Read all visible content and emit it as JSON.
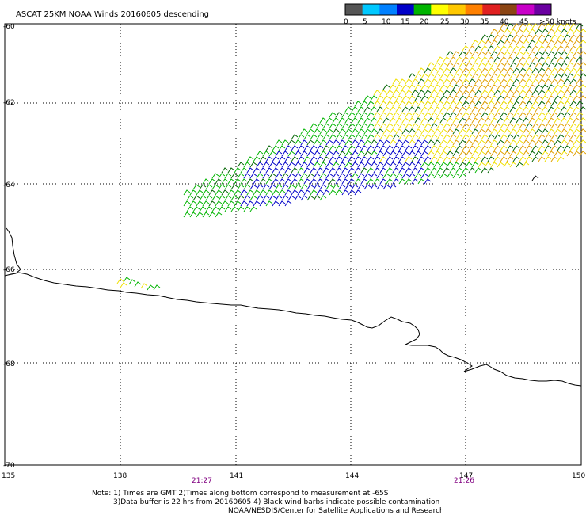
{
  "title": "ASCAT 25KM NOAA Winds 20160605 descending",
  "legend": {
    "labels": [
      "0",
      "5",
      "10",
      "15",
      "20",
      "25",
      "30",
      "35",
      "40",
      "45",
      ">50 knots"
    ],
    "colors": [
      "#555555",
      "#00c8ff",
      "#0080ff",
      "#0000c8",
      "#00b400",
      "#ffff00",
      "#ffc800",
      "#ff8000",
      "#e02020",
      "#8b4513",
      "#c800c8",
      "#6a00a0"
    ]
  },
  "axes": {
    "lon_labels": [
      "135",
      "138",
      "141",
      "144",
      "147",
      "150"
    ],
    "lat_labels": [
      "-60",
      "-62",
      "-64",
      "-66",
      "-68",
      "-70"
    ]
  },
  "times": [
    "21:27",
    "21:26"
  ],
  "notes": [
    "Note: 1) Times are GMT 2)Times along bottom correspond to measurement at -65S",
    "3)Data buffer is 22 hrs from 20160605 4) Black wind barbs indicate possible contamination",
    "NOAA/NESDIS/Center for Satellite Applications and Research"
  ],
  "colors": {
    "barb_blue": "#0000c8",
    "barb_green": "#00b400",
    "barb_darkgreen": "#006400",
    "barb_yellow": "#f0e000",
    "barb_orange": "#e0a000",
    "coast": "#000000",
    "grid": "#000000"
  }
}
